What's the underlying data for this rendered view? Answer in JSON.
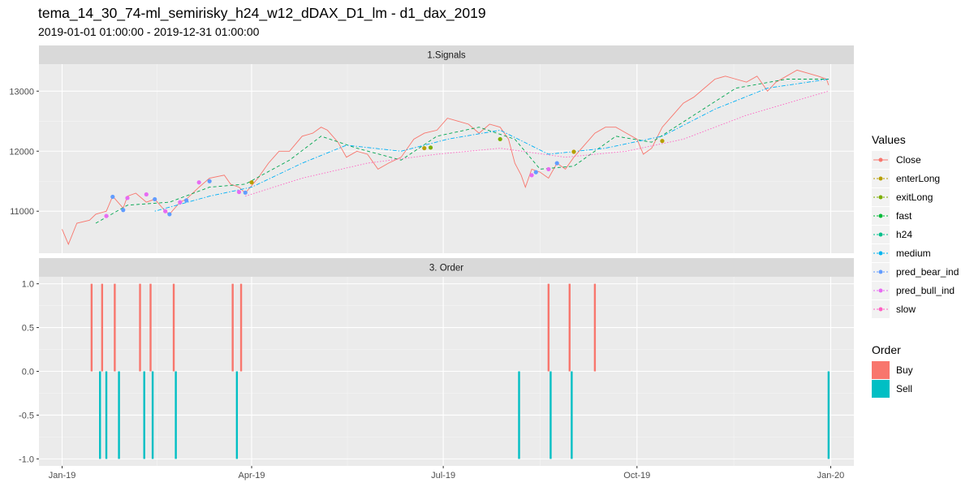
{
  "title": "tema_14_30_74-ml_semirisky_h24_w12_dDAX_D1_lm - d1_dax_2019",
  "subtitle": "2019-01-01 01:00:00 - 2019-12-31 01:00:00",
  "chart_data": {
    "type": "line",
    "x_ticks": [
      "Jan-19",
      "Apr-19",
      "Jul-19",
      "Oct-19",
      "Jan-20"
    ],
    "x_tick_dates": [
      "2019-01-01",
      "2019-04-01",
      "2019-07-01",
      "2019-10-01",
      "2020-01-01"
    ],
    "xlim": [
      "2018-12-21",
      "2020-01-12"
    ],
    "panels": [
      {
        "strip": "1.Signals",
        "ylim": [
          10300,
          13450
        ],
        "y_ticks": [
          "11000",
          "12000",
          "13000"
        ],
        "y_tick_values": [
          11000,
          12000,
          13000
        ],
        "series": [
          {
            "name": "Close",
            "color": "#F8766D",
            "style": "solid",
            "points": [
              [
                "2019-01-01",
                10700
              ],
              [
                "2019-01-04",
                10450
              ],
              [
                "2019-01-08",
                10800
              ],
              [
                "2019-01-14",
                10850
              ],
              [
                "2019-01-17",
                10950
              ],
              [
                "2019-01-22",
                11000
              ],
              [
                "2019-01-25",
                11250
              ],
              [
                "2019-01-30",
                11050
              ],
              [
                "2019-02-01",
                11250
              ],
              [
                "2019-02-05",
                11300
              ],
              [
                "2019-02-10",
                11150
              ],
              [
                "2019-02-14",
                11200
              ],
              [
                "2019-02-19",
                11000
              ],
              [
                "2019-02-21",
                10950
              ],
              [
                "2019-02-26",
                11150
              ],
              [
                "2019-03-01",
                11200
              ],
              [
                "2019-03-07",
                11400
              ],
              [
                "2019-03-12",
                11550
              ],
              [
                "2019-03-19",
                11600
              ],
              [
                "2019-03-22",
                11450
              ],
              [
                "2019-03-26",
                11400
              ],
              [
                "2019-03-29",
                11300
              ],
              [
                "2019-04-04",
                11550
              ],
              [
                "2019-04-09",
                11800
              ],
              [
                "2019-04-14",
                12000
              ],
              [
                "2019-04-19",
                12000
              ],
              [
                "2019-04-25",
                12250
              ],
              [
                "2019-04-30",
                12300
              ],
              [
                "2019-05-04",
                12400
              ],
              [
                "2019-05-07",
                12350
              ],
              [
                "2019-05-12",
                12150
              ],
              [
                "2019-05-16",
                11900
              ],
              [
                "2019-05-21",
                12000
              ],
              [
                "2019-05-26",
                11950
              ],
              [
                "2019-05-31",
                11700
              ],
              [
                "2019-06-05",
                11800
              ],
              [
                "2019-06-11",
                11900
              ],
              [
                "2019-06-17",
                12200
              ],
              [
                "2019-06-22",
                12300
              ],
              [
                "2019-06-28",
                12350
              ],
              [
                "2019-07-03",
                12550
              ],
              [
                "2019-07-08",
                12500
              ],
              [
                "2019-07-13",
                12450
              ],
              [
                "2019-07-18",
                12300
              ],
              [
                "2019-07-23",
                12450
              ],
              [
                "2019-07-28",
                12400
              ],
              [
                "2019-08-01",
                12200
              ],
              [
                "2019-08-04",
                11800
              ],
              [
                "2019-08-07",
                11600
              ],
              [
                "2019-08-09",
                11400
              ],
              [
                "2019-08-12",
                11700
              ],
              [
                "2019-08-16",
                11650
              ],
              [
                "2019-08-20",
                11550
              ],
              [
                "2019-08-24",
                11800
              ],
              [
                "2019-08-28",
                11700
              ],
              [
                "2019-09-01",
                11900
              ],
              [
                "2019-09-06",
                12100
              ],
              [
                "2019-09-11",
                12300
              ],
              [
                "2019-09-16",
                12400
              ],
              [
                "2019-09-21",
                12400
              ],
              [
                "2019-09-26",
                12300
              ],
              [
                "2019-10-01",
                12200
              ],
              [
                "2019-10-04",
                11950
              ],
              [
                "2019-10-08",
                12050
              ],
              [
                "2019-10-13",
                12400
              ],
              [
                "2019-10-18",
                12600
              ],
              [
                "2019-10-23",
                12800
              ],
              [
                "2019-10-28",
                12900
              ],
              [
                "2019-11-02",
                13050
              ],
              [
                "2019-11-07",
                13200
              ],
              [
                "2019-11-12",
                13250
              ],
              [
                "2019-11-17",
                13200
              ],
              [
                "2019-11-22",
                13150
              ],
              [
                "2019-11-27",
                13250
              ],
              [
                "2019-12-02",
                13000
              ],
              [
                "2019-12-06",
                13150
              ],
              [
                "2019-12-11",
                13250
              ],
              [
                "2019-12-16",
                13350
              ],
              [
                "2019-12-21",
                13300
              ],
              [
                "2019-12-26",
                13250
              ],
              [
                "2019-12-30",
                13200
              ],
              [
                "2019-12-31",
                13100
              ]
            ]
          },
          {
            "name": "fast",
            "color": "#00A650",
            "style": "dashed",
            "points": [
              [
                "2019-01-17",
                10800
              ],
              [
                "2019-02-01",
                11100
              ],
              [
                "2019-02-21",
                11150
              ],
              [
                "2019-03-12",
                11400
              ],
              [
                "2019-03-29",
                11450
              ],
              [
                "2019-04-19",
                11850
              ],
              [
                "2019-05-04",
                12250
              ],
              [
                "2019-05-21",
                12050
              ],
              [
                "2019-06-11",
                11850
              ],
              [
                "2019-06-28",
                12250
              ],
              [
                "2019-07-18",
                12400
              ],
              [
                "2019-08-04",
                12200
              ],
              [
                "2019-08-16",
                11700
              ],
              [
                "2019-09-01",
                11750
              ],
              [
                "2019-09-21",
                12250
              ],
              [
                "2019-10-08",
                12150
              ],
              [
                "2019-10-28",
                12600
              ],
              [
                "2019-11-17",
                13050
              ],
              [
                "2019-12-11",
                13200
              ],
              [
                "2019-12-31",
                13200
              ]
            ]
          },
          {
            "name": "medium",
            "color": "#00B0F6",
            "style": "dotdash",
            "points": [
              [
                "2019-02-14",
                11000
              ],
              [
                "2019-03-12",
                11250
              ],
              [
                "2019-04-01",
                11400
              ],
              [
                "2019-04-25",
                11800
              ],
              [
                "2019-05-16",
                12100
              ],
              [
                "2019-06-11",
                12000
              ],
              [
                "2019-07-03",
                12200
              ],
              [
                "2019-07-28",
                12350
              ],
              [
                "2019-08-20",
                11950
              ],
              [
                "2019-09-16",
                12050
              ],
              [
                "2019-10-13",
                12250
              ],
              [
                "2019-11-07",
                12700
              ],
              [
                "2019-12-02",
                13050
              ],
              [
                "2019-12-31",
                13200
              ]
            ]
          },
          {
            "name": "slow",
            "color": "#FF61C3",
            "style": "dotted",
            "points": [
              [
                "2019-03-29",
                11250
              ],
              [
                "2019-04-25",
                11550
              ],
              [
                "2019-05-26",
                11800
              ],
              [
                "2019-06-28",
                11950
              ],
              [
                "2019-07-28",
                12050
              ],
              [
                "2019-08-28",
                11900
              ],
              [
                "2019-09-26",
                12000
              ],
              [
                "2019-10-23",
                12200
              ],
              [
                "2019-11-22",
                12600
              ],
              [
                "2019-12-31",
                13000
              ]
            ]
          }
        ],
        "markers": [
          {
            "series": "pred_bull_ind",
            "color": "#E76BF3",
            "points": [
              [
                "2019-01-22",
                10920
              ],
              [
                "2019-02-01",
                11220
              ],
              [
                "2019-02-10",
                11280
              ],
              [
                "2019-02-19",
                11000
              ],
              [
                "2019-02-26",
                11150
              ],
              [
                "2019-03-07",
                11480
              ],
              [
                "2019-03-26",
                11320
              ],
              [
                "2019-08-12",
                11600
              ],
              [
                "2019-08-20",
                11700
              ]
            ]
          },
          {
            "series": "pred_bear_ind",
            "color": "#619CFF",
            "points": [
              [
                "2019-01-25",
                11240
              ],
              [
                "2019-01-30",
                11020
              ],
              [
                "2019-02-14",
                11200
              ],
              [
                "2019-02-21",
                10950
              ],
              [
                "2019-03-01",
                11180
              ],
              [
                "2019-03-12",
                11500
              ],
              [
                "2019-03-29",
                11310
              ],
              [
                "2019-08-14",
                11650
              ],
              [
                "2019-08-24",
                11800
              ]
            ]
          },
          {
            "series": "enterLong",
            "color": "#B79F00",
            "points": [
              [
                "2019-04-01",
                11480
              ],
              [
                "2019-06-22",
                12050
              ],
              [
                "2019-09-01",
                11990
              ],
              [
                "2019-10-13",
                12170
              ]
            ]
          },
          {
            "series": "exitLong",
            "color": "#7CAE00",
            "points": [
              [
                "2019-06-25",
                12060
              ],
              [
                "2019-07-28",
                12200
              ]
            ]
          }
        ]
      },
      {
        "strip": "3. Order",
        "ylim": [
          -1.08,
          1.08
        ],
        "y_ticks": [
          "1.0",
          "0.5",
          "0.0",
          "-0.5",
          "-1.0"
        ],
        "y_tick_values": [
          1.0,
          0.5,
          0.0,
          -0.5,
          -1.0
        ],
        "bars": [
          {
            "date": "2019-01-15",
            "value": 1,
            "order": "Buy"
          },
          {
            "date": "2019-01-20",
            "value": 1,
            "order": "Buy"
          },
          {
            "date": "2019-01-26",
            "value": 1,
            "order": "Buy"
          },
          {
            "date": "2019-02-07",
            "value": 1,
            "order": "Buy"
          },
          {
            "date": "2019-02-12",
            "value": 1,
            "order": "Buy"
          },
          {
            "date": "2019-02-23",
            "value": 1,
            "order": "Buy"
          },
          {
            "date": "2019-03-23",
            "value": 1,
            "order": "Buy"
          },
          {
            "date": "2019-03-27",
            "value": 1,
            "order": "Buy"
          },
          {
            "date": "2019-08-20",
            "value": 1,
            "order": "Buy"
          },
          {
            "date": "2019-08-30",
            "value": 1,
            "order": "Buy"
          },
          {
            "date": "2019-09-11",
            "value": 1,
            "order": "Buy"
          },
          {
            "date": "2019-01-19",
            "value": -1,
            "order": "Sell"
          },
          {
            "date": "2019-01-22",
            "value": -1,
            "order": "Sell"
          },
          {
            "date": "2019-01-28",
            "value": -1,
            "order": "Sell"
          },
          {
            "date": "2019-02-09",
            "value": -1,
            "order": "Sell"
          },
          {
            "date": "2019-02-13",
            "value": -1,
            "order": "Sell"
          },
          {
            "date": "2019-02-24",
            "value": -1,
            "order": "Sell"
          },
          {
            "date": "2019-03-25",
            "value": -1,
            "order": "Sell"
          },
          {
            "date": "2019-08-06",
            "value": -1,
            "order": "Sell"
          },
          {
            "date": "2019-08-21",
            "value": -1,
            "order": "Sell"
          },
          {
            "date": "2019-08-31",
            "value": -1,
            "order": "Sell"
          },
          {
            "date": "2019-12-31",
            "value": -1,
            "order": "Sell"
          }
        ]
      }
    ],
    "legends": [
      {
        "title": "Values",
        "position": "right",
        "entries": [
          {
            "label": "Close",
            "color": "#F8766D"
          },
          {
            "label": "enterLong",
            "color": "#B79F00"
          },
          {
            "label": "exitLong",
            "color": "#7CAE00"
          },
          {
            "label": "fast",
            "color": "#00BA38"
          },
          {
            "label": "h24",
            "color": "#00C08B"
          },
          {
            "label": "medium",
            "color": "#00B4EF"
          },
          {
            "label": "pred_bear_ind",
            "color": "#619CFF"
          },
          {
            "label": "pred_bull_ind",
            "color": "#E76BF3"
          },
          {
            "label": "slow",
            "color": "#FF61C3"
          }
        ]
      },
      {
        "title": "Order",
        "position": "right",
        "entries": [
          {
            "label": "Buy",
            "color": "#F8766D"
          },
          {
            "label": "Sell",
            "color": "#00BFC4"
          }
        ]
      }
    ]
  }
}
